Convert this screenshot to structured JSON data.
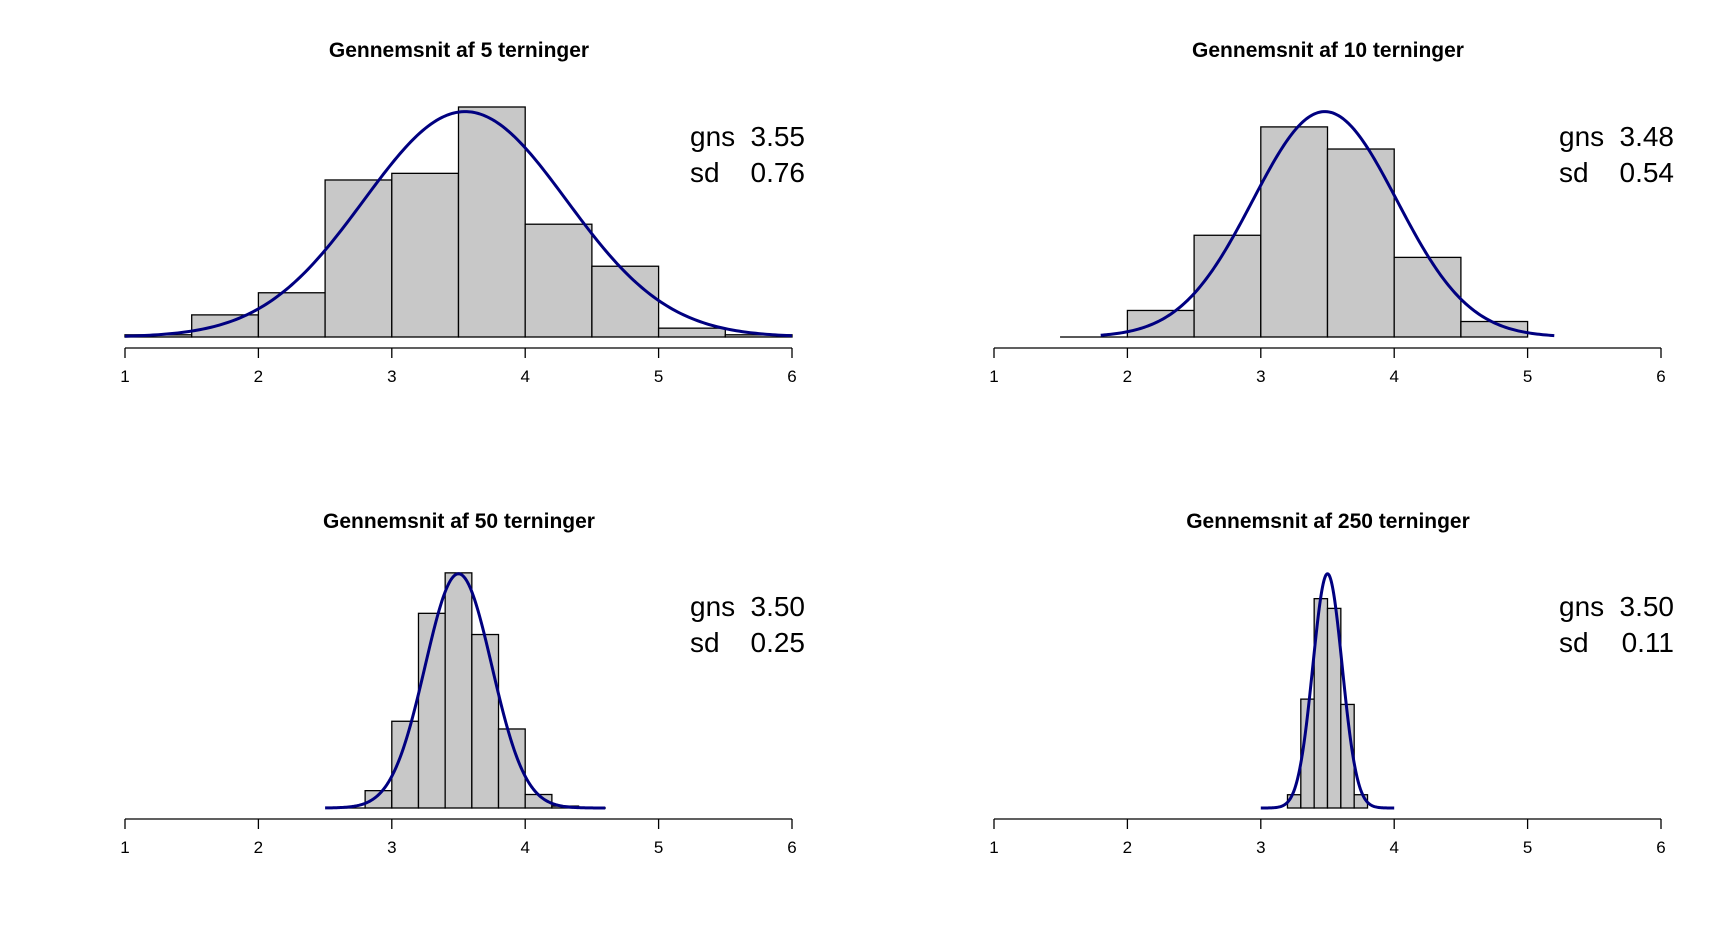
{
  "chart_data": [
    {
      "type": "bar",
      "title": "Gennemsnit af 5 terninger",
      "bins": [
        [
          1.0,
          1.5
        ],
        [
          1.5,
          2.0
        ],
        [
          2.0,
          2.5
        ],
        [
          2.5,
          3.0
        ],
        [
          3.0,
          3.5
        ],
        [
          3.5,
          4.0
        ],
        [
          4.0,
          4.5
        ],
        [
          4.5,
          5.0
        ],
        [
          5.0,
          5.5
        ],
        [
          5.5,
          6.0
        ]
      ],
      "values": [
        0.01,
        0.1,
        0.2,
        0.71,
        0.74,
        1.04,
        0.51,
        0.32,
        0.04,
        0.01
      ],
      "xlim": [
        1,
        6
      ],
      "ylim": [
        0,
        1.04
      ],
      "x_ticks": [
        "1",
        "2",
        "3",
        "4",
        "5",
        "6"
      ],
      "curve": {
        "type": "normal",
        "mean": 3.55,
        "sd": 0.76,
        "from": 1.0,
        "to": 6.0,
        "color": "#000080"
      },
      "annotation": {
        "gns_label": "gns",
        "gns_value": "3.55",
        "sd_label": "sd",
        "sd_value": "0.76"
      }
    },
    {
      "type": "bar",
      "title": "Gennemsnit af 10 terninger",
      "bins": [
        [
          1.5,
          2.0
        ],
        [
          2.0,
          2.5
        ],
        [
          2.5,
          3.0
        ],
        [
          3.0,
          3.5
        ],
        [
          3.5,
          4.0
        ],
        [
          4.0,
          4.5
        ],
        [
          4.5,
          5.0
        ]
      ],
      "values": [
        0.0,
        0.12,
        0.46,
        0.95,
        0.85,
        0.36,
        0.07
      ],
      "xlim": [
        1,
        6
      ],
      "ylim": [
        0,
        1.04
      ],
      "x_ticks": [
        "1",
        "2",
        "3",
        "4",
        "5",
        "6"
      ],
      "curve": {
        "type": "normal",
        "mean": 3.48,
        "sd": 0.54,
        "from": 1.8,
        "to": 5.2,
        "color": "#000080"
      },
      "annotation": {
        "gns_label": "gns",
        "gns_value": "3.48",
        "sd_label": "sd",
        "sd_value": "0.54"
      }
    },
    {
      "type": "bar",
      "title": "Gennemsnit af 50 terninger",
      "bins": [
        [
          2.6,
          2.8
        ],
        [
          2.8,
          3.0
        ],
        [
          3.0,
          3.2
        ],
        [
          3.2,
          3.4
        ],
        [
          3.4,
          3.6
        ],
        [
          3.6,
          3.8
        ],
        [
          3.8,
          4.0
        ],
        [
          4.0,
          4.2
        ],
        [
          4.2,
          4.4
        ],
        [
          4.4,
          4.6
        ]
      ],
      "values": [
        0.0,
        0.09,
        0.45,
        1.01,
        1.22,
        0.9,
        0.41,
        0.07,
        0.01,
        0.0
      ],
      "xlim": [
        1,
        6
      ],
      "ylim": [
        0,
        1.24
      ],
      "x_ticks": [
        "1",
        "2",
        "3",
        "4",
        "5",
        "6"
      ],
      "curve": {
        "type": "normal",
        "mean": 3.5,
        "sd": 0.25,
        "from": 2.5,
        "to": 4.6,
        "color": "#000080"
      },
      "annotation": {
        "gns_label": "gns",
        "gns_value": "3.50",
        "sd_label": "sd",
        "sd_value": "0.25"
      }
    },
    {
      "type": "bar",
      "title": "Gennemsnit af 250 terninger",
      "bins": [
        [
          3.2,
          3.3
        ],
        [
          3.3,
          3.4
        ],
        [
          3.4,
          3.5
        ],
        [
          3.5,
          3.6
        ],
        [
          3.6,
          3.7
        ],
        [
          3.7,
          3.8
        ]
      ],
      "values": [
        0.3,
        2.46,
        4.73,
        4.51,
        2.34,
        0.3
      ],
      "xlim": [
        1,
        6
      ],
      "ylim": [
        0,
        5.4
      ],
      "x_ticks": [
        "1",
        "2",
        "3",
        "4",
        "5",
        "6"
      ],
      "curve": {
        "type": "normal",
        "mean": 3.5,
        "sd": 0.11,
        "from": 3.0,
        "to": 4.0,
        "color": "#000080"
      },
      "annotation": {
        "gns_label": "gns",
        "gns_value": "3.50",
        "sd_label": "sd",
        "sd_value": "0.11"
      }
    }
  ],
  "colors": {
    "bar_fill": "#c8c8c8",
    "bar_stroke": "#000000",
    "curve": "#000080",
    "axis": "#000000"
  }
}
